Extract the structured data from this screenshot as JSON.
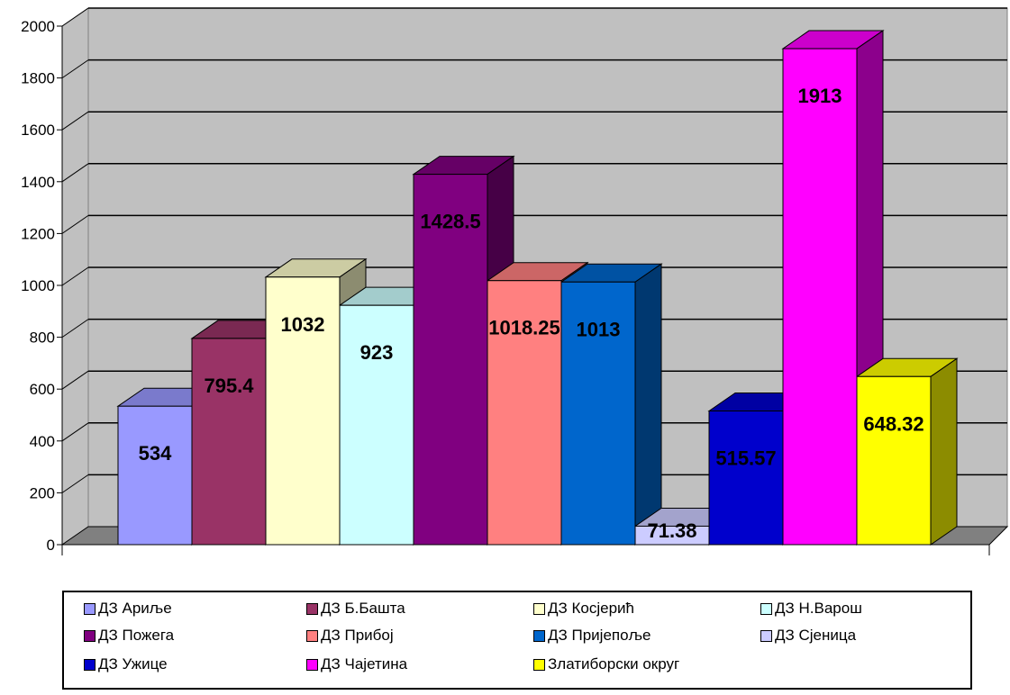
{
  "chart_data": {
    "type": "bar",
    "style": "3d-column",
    "title": "",
    "xlabel": "",
    "ylabel": "",
    "ylim": [
      0,
      2000
    ],
    "yticks": [
      0,
      200,
      400,
      600,
      800,
      1000,
      1200,
      1400,
      1600,
      1800,
      2000
    ],
    "ytick_labels": [
      "0",
      "200",
      "400",
      "600",
      "800",
      "1000",
      "1200",
      "1400",
      "1600",
      "1800",
      "2000"
    ],
    "grid": true,
    "legend_position": "bottom",
    "series": [
      {
        "name": "ДЗ Ариље",
        "value": 534,
        "label": "534",
        "color": "#9999ff"
      },
      {
        "name": "ДЗ Б.Башта",
        "value": 795.4,
        "label": "795.4",
        "color": "#993366"
      },
      {
        "name": "ДЗ Косјерић",
        "value": 1032,
        "label": "1032",
        "color": "#ffffcc"
      },
      {
        "name": "ДЗ Н.Варош",
        "value": 923,
        "label": "923",
        "color": "#ccffff"
      },
      {
        "name": "ДЗ Пожега",
        "value": 1428.5,
        "label": "1428.5",
        "color": "#800080"
      },
      {
        "name": "ДЗ Прибој",
        "value": 1018.25,
        "label": "1018.25",
        "color": "#ff8080"
      },
      {
        "name": "ДЗ Пријепоље",
        "value": 1013,
        "label": "1013",
        "color": "#0066cc"
      },
      {
        "name": "ДЗ Сјеница",
        "value": 71.38,
        "label": "71.38",
        "color": "#ccccff"
      },
      {
        "name": "ДЗ Ужице",
        "value": 515.57,
        "label": "515.57",
        "color": "#0000cc"
      },
      {
        "name": "ДЗ Чајетина",
        "value": 1913,
        "label": "1913",
        "color": "#ff00ff"
      },
      {
        "name": "Златиборски округ",
        "value": 648.32,
        "label": "648.32",
        "color": "#ffff00"
      }
    ],
    "wall_color": "#c0c0c0",
    "floor_color": "#808080"
  }
}
